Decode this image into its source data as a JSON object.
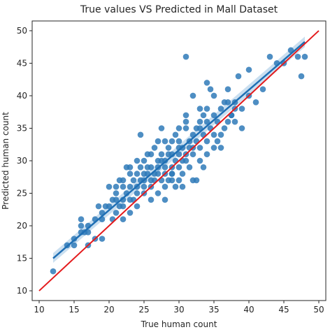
{
  "chart_data": {
    "type": "scatter",
    "title": "True values VS Predicted in Mall Dataset",
    "xlabel": "True human count",
    "ylabel": "Predicted human count",
    "xlim": [
      9.0,
      51.0
    ],
    "ylim": [
      8.5,
      51.5
    ],
    "xticks": [
      "10",
      "15",
      "20",
      "25",
      "30",
      "35",
      "40",
      "45",
      "50"
    ],
    "yticks": [
      "10",
      "15",
      "20",
      "25",
      "30",
      "35",
      "40",
      "45",
      "50"
    ],
    "grid": false,
    "colors": {
      "points": "#2f7ab8",
      "regression": "#1f6fb4",
      "confidence_band": "#9fc4e4",
      "identity": "#e41a1c"
    },
    "regression_line": {
      "x": [
        12,
        48
      ],
      "y": [
        15.0,
        48.3
      ]
    },
    "confidence_band": {
      "x": [
        12,
        48
      ],
      "lower": [
        14.3,
        47.5
      ],
      "upper": [
        15.8,
        49.1
      ]
    },
    "identity_line": {
      "x": [
        10,
        50
      ],
      "y": [
        10,
        50
      ]
    },
    "points": {
      "x": [
        12,
        14,
        15,
        15,
        16,
        16,
        16,
        16.5,
        17,
        17,
        17,
        18,
        18,
        18.5,
        19,
        19,
        19,
        19.5,
        20,
        20,
        20.5,
        20.5,
        21,
        21,
        21,
        21,
        21.5,
        21.5,
        22,
        22,
        22,
        22,
        22,
        22.5,
        22.5,
        23,
        23,
        23,
        23,
        23,
        23.5,
        23.5,
        24,
        24,
        24,
        24,
        24,
        24.5,
        24.5,
        24.5,
        25,
        25,
        25,
        25,
        25,
        25.5,
        25.5,
        25.5,
        26,
        26,
        26,
        26,
        26,
        26.5,
        26.5,
        26.5,
        27,
        27,
        27,
        27,
        27,
        27.5,
        27.5,
        27.5,
        27.5,
        28,
        28,
        28,
        28,
        28,
        28,
        28.5,
        28.5,
        28.5,
        29,
        29,
        29,
        29,
        29,
        29,
        29.5,
        29.5,
        29.5,
        30,
        30,
        30,
        30,
        30,
        30,
        30.5,
        30.5,
        30.5,
        30.5,
        31,
        31,
        31,
        31,
        31,
        31,
        31.5,
        31.5,
        31.5,
        32,
        32,
        32,
        32,
        32,
        32.5,
        32.5,
        32.5,
        33,
        33,
        33,
        33,
        33,
        33.5,
        33.5,
        33.5,
        34,
        34,
        34,
        34,
        34,
        34.5,
        34.5,
        35,
        35,
        35,
        35,
        35.5,
        35.5,
        36,
        36,
        36,
        36.5,
        36.5,
        37,
        37,
        37,
        37.5,
        37.5,
        38,
        38,
        38,
        38.5,
        39,
        39,
        40,
        40,
        41,
        42,
        43,
        44,
        45,
        46,
        47,
        47.5,
        48
      ],
      "y": [
        13,
        17,
        17,
        18,
        19,
        20,
        21,
        19,
        17,
        20,
        19,
        21,
        18,
        23,
        18,
        22,
        21,
        23,
        23,
        26,
        24,
        21,
        22,
        25,
        24,
        26,
        23,
        27,
        21,
        24,
        26,
        27,
        23,
        25,
        29,
        26,
        22,
        28,
        24,
        29,
        27,
        24,
        26,
        25,
        28,
        30,
        23,
        34,
        29,
        27,
        25,
        27,
        28,
        26,
        30,
        29,
        28,
        31,
        26,
        29,
        27,
        31,
        24,
        28,
        32,
        27,
        25,
        28,
        30,
        33,
        29,
        35,
        27,
        31,
        30,
        28,
        24,
        33,
        26,
        29,
        30,
        32,
        27,
        31,
        28,
        29,
        27,
        33,
        31,
        28,
        34,
        30,
        26,
        32,
        35,
        29,
        31,
        27,
        33,
        26,
        30,
        28,
        32,
        37,
        46,
        36,
        35,
        31,
        30,
        33,
        32,
        29,
        27,
        40,
        34,
        32,
        31,
        35,
        27,
        33,
        36,
        30,
        38,
        35,
        32,
        37,
        34,
        29,
        33,
        36,
        31,
        42,
        38,
        41,
        35,
        32,
        37,
        34,
        40,
        36,
        33,
        38,
        32,
        34,
        39,
        35,
        36,
        41,
        39,
        37,
        37,
        39,
        36,
        38,
        43,
        38,
        35,
        44,
        40,
        39,
        41,
        46,
        45,
        45,
        47,
        46,
        43,
        46
      ]
    }
  }
}
